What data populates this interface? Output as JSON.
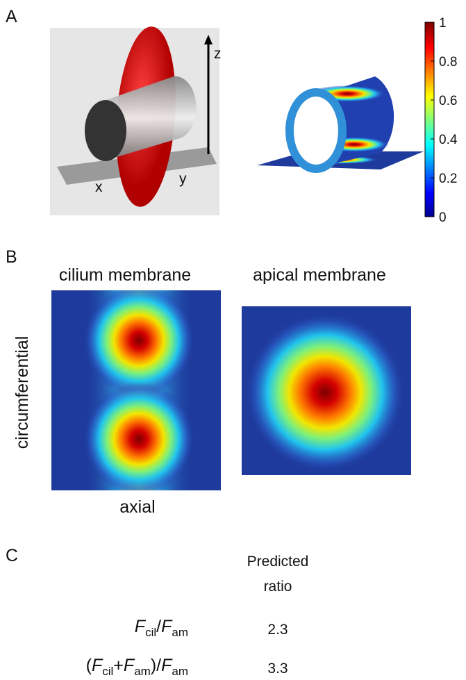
{
  "panels": {
    "A": {
      "label": "A",
      "axes": {
        "z": "z",
        "x": "x",
        "y": "y"
      },
      "colorbar": {
        "lim": [
          0,
          1
        ],
        "ticks": [
          1,
          0.8,
          0.6,
          0.4,
          0.2,
          0
        ]
      }
    },
    "B": {
      "label": "B",
      "maps": [
        {
          "title": "cilium membrane"
        },
        {
          "title": "apical membrane"
        }
      ],
      "ylabel": "circumferential",
      "xlabel": "axial"
    },
    "C": {
      "label": "C",
      "header": [
        "Predicted",
        "ratio"
      ],
      "rows": [
        {
          "label": [
            "F",
            "cil",
            "/",
            "F",
            "am"
          ],
          "value": 2.3
        },
        {
          "label": [
            "(",
            "F",
            "cil",
            "+",
            "F",
            "am",
            ")/",
            "F",
            "am"
          ],
          "value": 3.3
        }
      ]
    }
  }
}
